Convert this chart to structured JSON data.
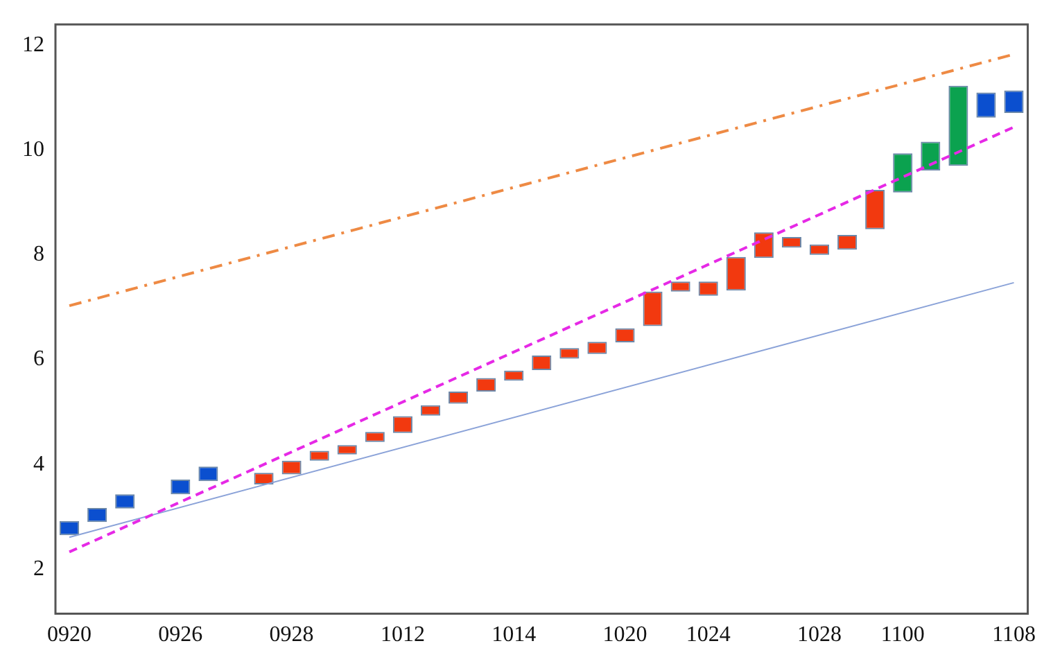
{
  "chart_data": {
    "type": "bar",
    "categories": [
      "0920",
      null,
      null,
      null,
      "0926",
      null,
      null,
      null,
      "0928",
      null,
      null,
      null,
      "1012",
      null,
      null,
      null,
      "1014",
      null,
      null,
      null,
      "1020",
      null,
      null,
      "1024",
      null,
      null,
      null,
      "1028",
      null,
      null,
      "1100",
      null,
      null,
      null,
      "1108"
    ],
    "ylim": [
      1.15,
      12.4
    ],
    "yticks": [
      2,
      4,
      6,
      8,
      10,
      12
    ],
    "grid": false,
    "series": [
      {
        "base": [
          2.65,
          2.9,
          3.16,
          null,
          3.43,
          3.68,
          null,
          3.62,
          3.81,
          4.07,
          4.19,
          4.43,
          4.6,
          4.93,
          5.16,
          5.39,
          5.6,
          5.8,
          6.02,
          6.11,
          6.33,
          6.64,
          7.3,
          7.22,
          7.32,
          7.94,
          8.14,
          8.0,
          8.1,
          8.49,
          9.19,
          9.61,
          9.7,
          10.62,
          10.71
        ],
        "values": [
          0.27,
          0.27,
          0.27,
          null,
          0.28,
          0.28,
          null,
          0.22,
          0.26,
          0.19,
          0.18,
          0.19,
          0.32,
          0.2,
          0.23,
          0.26,
          0.19,
          0.28,
          0.2,
          0.23,
          0.27,
          0.66,
          0.19,
          0.27,
          0.64,
          0.49,
          0.2,
          0.2,
          0.28,
          0.75,
          0.75,
          0.55,
          1.53,
          0.48,
          0.43
        ],
        "colors": [
          "#0b4fcf",
          "#0b4fcf",
          "#0b4fcf",
          "#0b4fcf",
          "#0b4fcf",
          "#0b4fcf",
          "#0b4fcf",
          "#f2390f",
          "#f2390f",
          "#f2390f",
          "#f2390f",
          "#f2390f",
          "#f2390f",
          "#f2390f",
          "#f2390f",
          "#f2390f",
          "#f2390f",
          "#f2390f",
          "#f2390f",
          "#f2390f",
          "#f2390f",
          "#f2390f",
          "#f2390f",
          "#f2390f",
          "#f2390f",
          "#f2390f",
          "#f2390f",
          "#f2390f",
          "#f2390f",
          "#f2390f",
          "#0ba24f",
          "#0ba24f",
          "#0ba24f",
          "#0b4fcf",
          "#0b4fcf"
        ]
      },
      {
        "type": "line",
        "color": "#ee8a44",
        "line_style": "dashdot",
        "values": [
          7.03,
          null,
          null,
          null,
          null,
          null,
          null,
          null,
          null,
          null,
          null,
          null,
          null,
          null,
          null,
          null,
          null,
          null,
          null,
          null,
          null,
          null,
          null,
          null,
          null,
          null,
          null,
          null,
          null,
          null,
          null,
          null,
          null,
          null,
          11.83
        ]
      },
      {
        "type": "line",
        "color": "#e629e6",
        "line_style": "dashed",
        "values": [
          2.33,
          null,
          null,
          null,
          null,
          null,
          null,
          null,
          null,
          null,
          null,
          null,
          null,
          null,
          null,
          null,
          null,
          null,
          null,
          null,
          null,
          null,
          null,
          null,
          null,
          null,
          null,
          null,
          null,
          null,
          null,
          null,
          null,
          null,
          10.44
        ]
      },
      {
        "type": "line",
        "color": "#8aa2d8",
        "line_style": "solid",
        "values": [
          2.61,
          null,
          null,
          null,
          null,
          null,
          null,
          null,
          null,
          null,
          null,
          null,
          null,
          null,
          null,
          null,
          null,
          null,
          null,
          null,
          null,
          null,
          null,
          null,
          null,
          null,
          null,
          null,
          null,
          null,
          null,
          null,
          null,
          null,
          7.47
        ]
      }
    ]
  }
}
